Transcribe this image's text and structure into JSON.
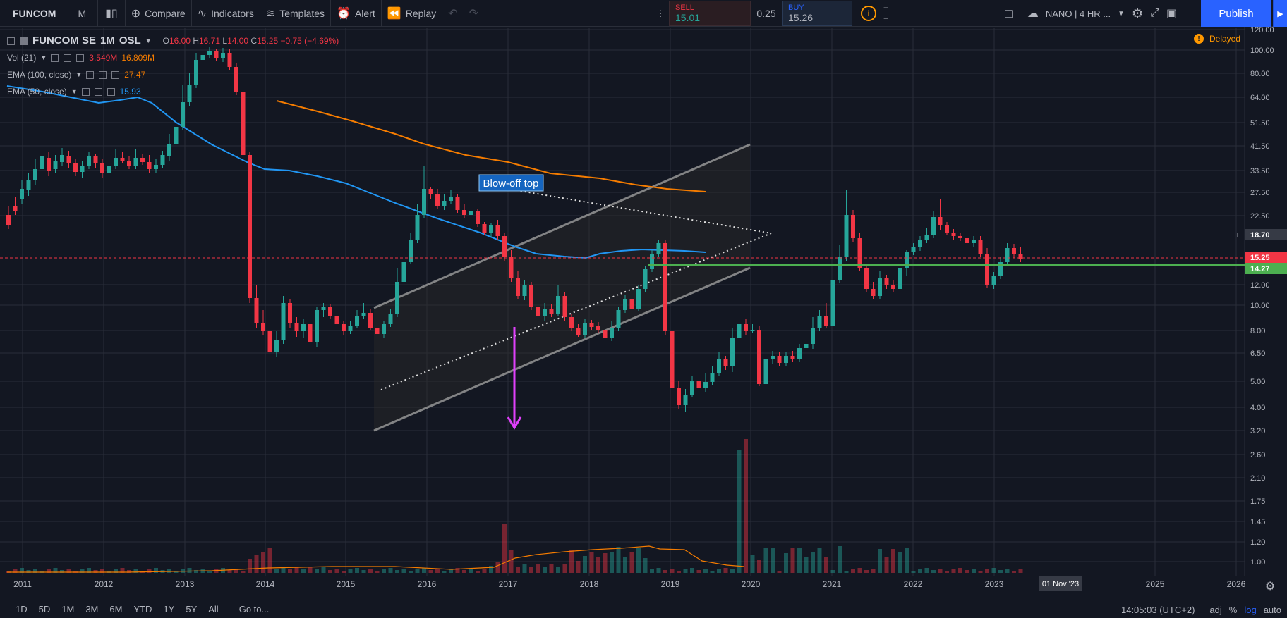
{
  "toolbar": {
    "symbol": "FUNCOM",
    "interval": "M",
    "compare": "Compare",
    "indicators": "Indicators",
    "templates": "Templates",
    "alert": "Alert",
    "replay": "Replay"
  },
  "trade": {
    "sell_label": "SELL",
    "sell_price": "15.01",
    "spread": "0.25",
    "buy_label": "BUY",
    "buy_price": "15.26"
  },
  "layout_name": "NANO | 4 HR ...",
  "publish_label": "Publish",
  "legend": {
    "symbol": "FUNCOM SE",
    "interval": "1M",
    "exchange": "OSL",
    "open_label": "O",
    "open": "16.00",
    "high_label": "H",
    "high": "16.71",
    "low_label": "L",
    "low": "14.00",
    "close_label": "C",
    "close": "15.25",
    "change": "−0.75 (−4.69%)",
    "vol_label": "Vol (21)",
    "vol_a": "3.549M",
    "vol_b": "16.809M",
    "ema100_label": "EMA (100, close)",
    "ema100_value": "27.47",
    "ema50_label": "EMA (50, close)",
    "ema50_value": "15.93"
  },
  "delayed_label": "Delayed",
  "annotation_text": "Blow-off top",
  "price_axis": [
    "120.00",
    "100.00",
    "80.00",
    "64.00",
    "51.50",
    "41.50",
    "33.50",
    "27.50",
    "22.50",
    "18.70",
    "15.25",
    "14.27",
    "12.00",
    "10.00",
    "8.00",
    "6.50",
    "5.00",
    "4.00",
    "3.20",
    "2.60",
    "2.10",
    "1.75",
    "1.45",
    "1.20",
    "1.00"
  ],
  "time_axis": [
    "2011",
    "2012",
    "2013",
    "2014",
    "2015",
    "2016",
    "2017",
    "2018",
    "2019",
    "2020",
    "2021",
    "2022",
    "2023",
    "2025",
    "2026"
  ],
  "crosshair_date": "01 Nov '23",
  "badges": {
    "crosshair": "18.70",
    "last": "15.25",
    "support": "14.27"
  },
  "ranges": [
    "1D",
    "5D",
    "1M",
    "3M",
    "6M",
    "YTD",
    "1Y",
    "5Y",
    "All"
  ],
  "goto_label": "Go to...",
  "clock": "14:05:03 (UTC+2)",
  "scale": {
    "adj": "adj",
    "percent": "%",
    "log": "log",
    "auto": "auto"
  },
  "colors": {
    "bg": "#131722",
    "up": "#26a69a",
    "down": "#f23645",
    "ema100": "#f57c00",
    "ema50": "#2196f3",
    "arrow": "#e040fb",
    "support": "#4caf50",
    "accent": "#2962ff"
  }
}
